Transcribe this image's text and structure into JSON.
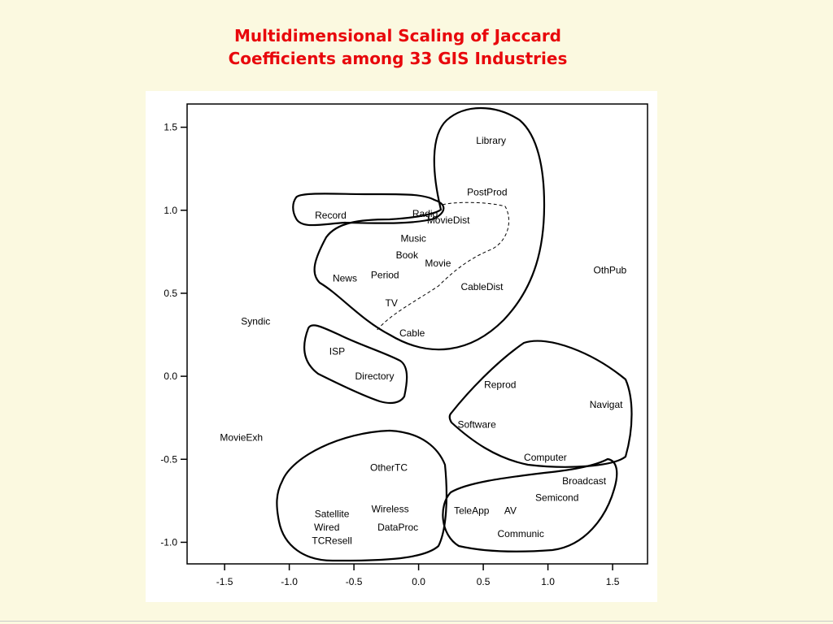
{
  "slide": {
    "title_line1": "Multidimensional Scaling of Jaccard",
    "title_line2": "Coefficients among 33 GIS Industries"
  },
  "colors": {
    "background": "#fbf9e0",
    "title": "#e8080c",
    "panel": "#ffffff",
    "ink": "#000000"
  },
  "chart_data": {
    "type": "scatter",
    "title": "Multidimensional Scaling of Jaccard Coefficients among 33 GIS Industries",
    "xlabel": "",
    "ylabel": "",
    "xlim": [
      -1.79,
      1.77
    ],
    "ylim": [
      -1.13,
      1.64
    ],
    "xticks": [
      -1.5,
      -1.0,
      -0.5,
      0.0,
      0.5,
      1.0,
      1.5
    ],
    "xtick_labels": [
      "-1.5",
      "-1.0",
      "-0.5",
      "0.0",
      "0.5",
      "1.0",
      "1.5"
    ],
    "yticks": [
      1.5,
      1.0,
      0.5,
      0.0,
      -0.5,
      -1.0
    ],
    "ytick_labels": [
      "1.5",
      "1.0",
      "0.5",
      "0.0",
      "-0.5",
      "-1.0"
    ],
    "grid": false,
    "points": [
      {
        "label": "Library",
        "x": 0.56,
        "y": 1.42
      },
      {
        "label": "PostProd",
        "x": 0.53,
        "y": 1.11
      },
      {
        "label": "Radio",
        "x": 0.05,
        "y": 0.98
      },
      {
        "label": "Record",
        "x": -0.68,
        "y": 0.97
      },
      {
        "label": "MovieDist",
        "x": 0.23,
        "y": 0.94
      },
      {
        "label": "Music",
        "x": -0.04,
        "y": 0.83
      },
      {
        "label": "Book",
        "x": -0.09,
        "y": 0.73
      },
      {
        "label": "Movie",
        "x": 0.15,
        "y": 0.68
      },
      {
        "label": "OthPub",
        "x": 1.48,
        "y": 0.64
      },
      {
        "label": "Period",
        "x": -0.26,
        "y": 0.61
      },
      {
        "label": "News",
        "x": -0.57,
        "y": 0.59
      },
      {
        "label": "CableDist",
        "x": 0.49,
        "y": 0.54
      },
      {
        "label": "TV",
        "x": -0.21,
        "y": 0.44
      },
      {
        "label": "Syndic",
        "x": -1.26,
        "y": 0.33
      },
      {
        "label": "Cable",
        "x": -0.05,
        "y": 0.26
      },
      {
        "label": "ISP",
        "x": -0.63,
        "y": 0.15
      },
      {
        "label": "Directory",
        "x": -0.34,
        "y": 0.0
      },
      {
        "label": "Reprod",
        "x": 0.63,
        "y": -0.05
      },
      {
        "label": "Navigat",
        "x": 1.45,
        "y": -0.17
      },
      {
        "label": "Software",
        "x": 0.45,
        "y": -0.29
      },
      {
        "label": "MovieExh",
        "x": -1.37,
        "y": -0.37
      },
      {
        "label": "Computer",
        "x": 0.98,
        "y": -0.49
      },
      {
        "label": "OtherTC",
        "x": -0.23,
        "y": -0.55
      },
      {
        "label": "Broadcast",
        "x": 1.28,
        "y": -0.63
      },
      {
        "label": "Semicond",
        "x": 1.07,
        "y": -0.73
      },
      {
        "label": "Wireless",
        "x": -0.22,
        "y": -0.8
      },
      {
        "label": "TeleApp",
        "x": 0.41,
        "y": -0.81
      },
      {
        "label": "AV",
        "x": 0.71,
        "y": -0.81
      },
      {
        "label": "Satellite",
        "x": -0.67,
        "y": -0.83
      },
      {
        "label": "Wired",
        "x": -0.71,
        "y": -0.91
      },
      {
        "label": "DataProc",
        "x": -0.16,
        "y": -0.91
      },
      {
        "label": "Communic",
        "x": 0.79,
        "y": -0.95
      },
      {
        "label": "TCResell",
        "x": -0.67,
        "y": -0.99
      }
    ]
  }
}
